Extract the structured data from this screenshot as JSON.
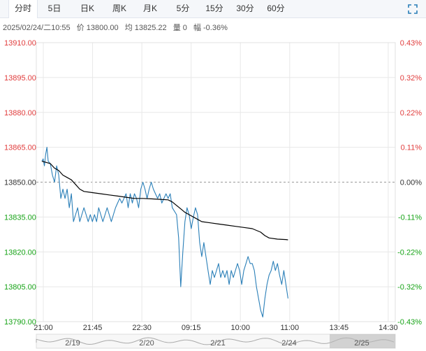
{
  "tabs": [
    {
      "label": "分时",
      "active": true
    },
    {
      "label": "5日",
      "active": false
    },
    {
      "label": "日K",
      "active": false
    },
    {
      "label": "周K",
      "active": false
    },
    {
      "label": "月K",
      "active": false
    },
    {
      "label": "5分",
      "active": false
    },
    {
      "label": "15分",
      "active": false
    },
    {
      "label": "30分",
      "active": false
    },
    {
      "label": "60分",
      "active": false
    }
  ],
  "fullscreen_icon": "expand-icon",
  "info": {
    "datetime": "2025/02/24/二10:55",
    "price": "价 13800.00",
    "avg": "均 13825.22",
    "volume": "量 0",
    "change": "幅 -0.36%"
  },
  "colors": {
    "up": "#e03c3c",
    "down": "#17a317",
    "price_line": "#2a7fb8",
    "avg_line": "#000000",
    "grid": "#e8e8e8",
    "reference": "#999999"
  },
  "chart_data": {
    "type": "line",
    "reference_price": 13850.0,
    "ylim": [
      13790,
      13910
    ],
    "y_ticks": [
      "13910.00",
      "13895.00",
      "13880.00",
      "13865.00",
      "13850.00",
      "13835.00",
      "13820.00",
      "13805.00",
      "13790.00"
    ],
    "pct_ticks": [
      "0.43%",
      "0.32%",
      "0.22%",
      "0.11%",
      "0.00%",
      "-0.11%",
      "-0.22%",
      "-0.32%",
      "-0.43%"
    ],
    "x_ticks": [
      "21:00",
      "21:45",
      "22:30",
      "09:15",
      "10:00",
      "11:00",
      "13:45",
      "14:30"
    ],
    "grid": true,
    "series": [
      {
        "name": "",
        "kind": "price",
        "points": [
          [
            0,
            13859
          ],
          [
            0.3,
            13860
          ],
          [
            0.6,
            13857
          ],
          [
            0.9,
            13862
          ],
          [
            1.2,
            13865
          ],
          [
            1.5,
            13859
          ],
          [
            2,
            13858
          ],
          [
            2.5,
            13853
          ],
          [
            3,
            13850
          ],
          [
            3.5,
            13857
          ],
          [
            4,
            13853
          ],
          [
            4.5,
            13843
          ],
          [
            5,
            13847
          ],
          [
            5.5,
            13843
          ],
          [
            6,
            13847
          ],
          [
            6.5,
            13839
          ],
          [
            7,
            13845
          ],
          [
            7.5,
            13833
          ],
          [
            8,
            13836
          ],
          [
            8.5,
            13839
          ],
          [
            9,
            13833
          ],
          [
            9.5,
            13836
          ],
          [
            10,
            13839
          ],
          [
            10.5,
            13836
          ],
          [
            11,
            13833
          ],
          [
            11.5,
            13836
          ],
          [
            12,
            13833
          ],
          [
            12.5,
            13836
          ],
          [
            13,
            13833
          ],
          [
            13.5,
            13839
          ],
          [
            14,
            13836
          ],
          [
            14.5,
            13833
          ],
          [
            15,
            13836
          ],
          [
            15.5,
            13839
          ],
          [
            16,
            13836
          ],
          [
            16.5,
            13833
          ],
          [
            17,
            13836
          ],
          [
            17.5,
            13839
          ],
          [
            18,
            13841
          ],
          [
            18.5,
            13843
          ],
          [
            19,
            13841
          ],
          [
            19.5,
            13843
          ],
          [
            20,
            13845
          ],
          [
            20.5,
            13839
          ],
          [
            21,
            13845
          ],
          [
            21.5,
            13841
          ],
          [
            22,
            13845
          ],
          [
            22.5,
            13843
          ],
          [
            23,
            13839
          ],
          [
            23.5,
            13847
          ],
          [
            24,
            13850
          ],
          [
            24.5,
            13847
          ],
          [
            25,
            13843
          ],
          [
            25.5,
            13847
          ],
          [
            26,
            13850
          ],
          [
            26.5,
            13847
          ],
          [
            27,
            13845
          ],
          [
            27.5,
            13843
          ],
          [
            28,
            13845
          ],
          [
            28.5,
            13841
          ],
          [
            29,
            13843
          ],
          [
            29.5,
            13845
          ],
          [
            30,
            13843
          ],
          [
            30.5,
            13845
          ],
          [
            31,
            13839
          ],
          [
            32,
            13836
          ],
          [
            32.5,
            13826
          ],
          [
            33,
            13805
          ],
          [
            33.5,
            13820
          ],
          [
            34,
            13833
          ],
          [
            34.5,
            13839
          ],
          [
            35,
            13836
          ],
          [
            35.5,
            13830
          ],
          [
            36,
            13835
          ],
          [
            36.5,
            13839
          ],
          [
            37,
            13836
          ],
          [
            37.5,
            13824
          ],
          [
            38,
            13818
          ],
          [
            38.5,
            13824
          ],
          [
            39,
            13818
          ],
          [
            39.5,
            13812
          ],
          [
            40,
            13806
          ],
          [
            40.5,
            13812
          ],
          [
            41,
            13809
          ],
          [
            41.5,
            13812
          ],
          [
            42,
            13815
          ],
          [
            42.5,
            13809
          ],
          [
            43,
            13812
          ],
          [
            43.5,
            13809
          ],
          [
            44,
            13812
          ],
          [
            44.5,
            13806
          ],
          [
            45,
            13812
          ],
          [
            45.5,
            13809
          ],
          [
            46,
            13812
          ],
          [
            46.5,
            13815
          ],
          [
            47,
            13812
          ],
          [
            47.5,
            13806
          ],
          [
            48,
            13812
          ],
          [
            48.5,
            13815
          ],
          [
            49,
            13818
          ],
          [
            49.5,
            13815
          ],
          [
            50,
            13815
          ],
          [
            50.5,
            13812
          ],
          [
            51,
            13805
          ],
          [
            51.5,
            13800
          ],
          [
            52,
            13795
          ],
          [
            52.5,
            13792
          ],
          [
            53,
            13800
          ],
          [
            53.5,
            13806
          ],
          [
            54,
            13810
          ],
          [
            54.5,
            13812
          ],
          [
            55,
            13816
          ],
          [
            55.5,
            13812
          ],
          [
            56,
            13815
          ],
          [
            56.5,
            13810
          ],
          [
            57,
            13806
          ],
          [
            57.5,
            13812
          ],
          [
            58,
            13806
          ],
          [
            58.5,
            13800
          ]
        ]
      },
      {
        "name": "",
        "kind": "average",
        "points": [
          [
            0,
            13859
          ],
          [
            2,
            13858
          ],
          [
            3,
            13856
          ],
          [
            4,
            13855
          ],
          [
            5,
            13853
          ],
          [
            6,
            13852
          ],
          [
            7,
            13851
          ],
          [
            8,
            13849
          ],
          [
            9,
            13847
          ],
          [
            10,
            13846
          ],
          [
            12,
            13845.5
          ],
          [
            14,
            13845
          ],
          [
            16,
            13844.5
          ],
          [
            18,
            13844
          ],
          [
            20,
            13843.5
          ],
          [
            22,
            13843
          ],
          [
            24,
            13843
          ],
          [
            26,
            13842.8
          ],
          [
            28,
            13842.6
          ],
          [
            30,
            13842.4
          ],
          [
            31,
            13841.5
          ],
          [
            32,
            13840
          ],
          [
            33,
            13838.5
          ],
          [
            34,
            13837
          ],
          [
            35,
            13836
          ],
          [
            36,
            13835
          ],
          [
            37,
            13834
          ],
          [
            38,
            13833
          ],
          [
            40,
            13832.5
          ],
          [
            42,
            13832
          ],
          [
            44,
            13831.5
          ],
          [
            46,
            13831
          ],
          [
            48,
            13830.5
          ],
          [
            50,
            13830
          ],
          [
            52,
            13828.5
          ],
          [
            53,
            13827
          ],
          [
            54,
            13826
          ],
          [
            56,
            13825.5
          ],
          [
            58,
            13825.3
          ],
          [
            58.5,
            13825.2
          ]
        ]
      }
    ],
    "x_max": 84
  },
  "navigator": {
    "labels": [
      "2/19",
      "2/20",
      "2/21",
      "2/24",
      "2/25"
    ]
  }
}
